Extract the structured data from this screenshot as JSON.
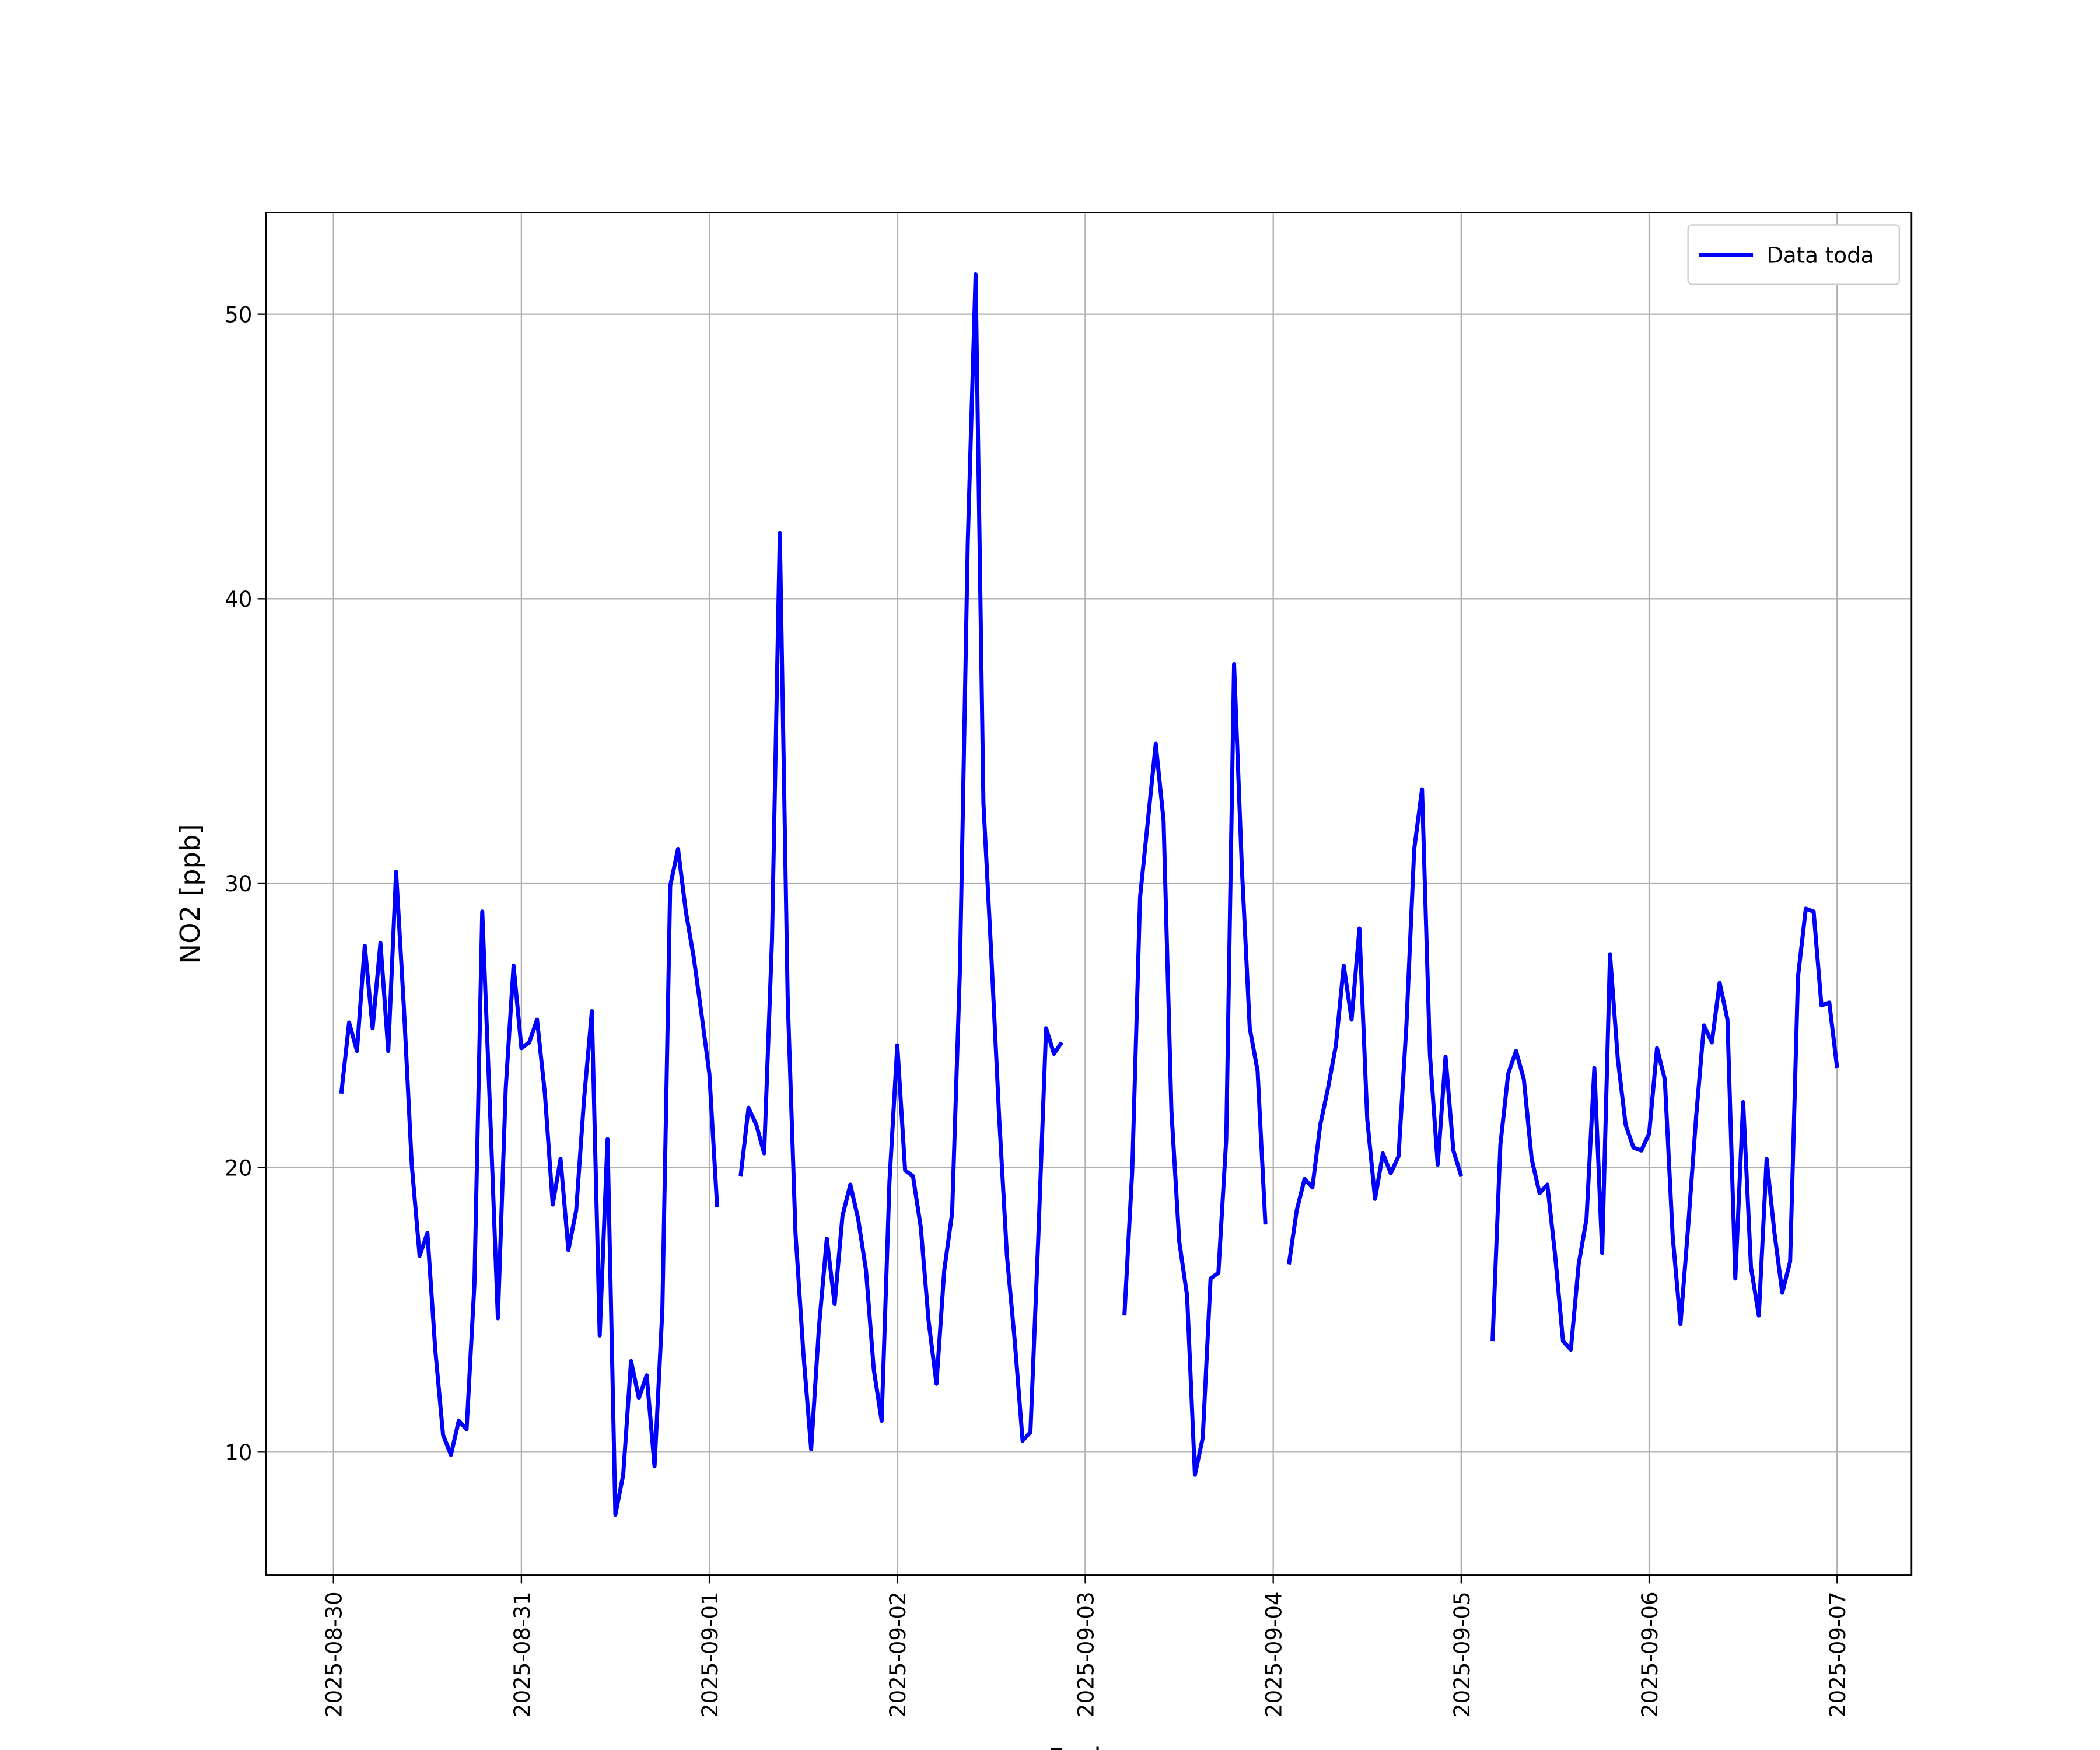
{
  "chart_data": {
    "type": "line",
    "xlabel": "Fecha",
    "ylabel": "NO2 [ppb]",
    "xlim": [
      "2025-08-29 15:21",
      "2025-09-07 09:30"
    ],
    "xticks": [
      "2025-08-30",
      "2025-08-31",
      "2025-09-01",
      "2025-09-02",
      "2025-09-03",
      "2025-09-04",
      "2025-09-05",
      "2025-09-06",
      "2025-09-07"
    ],
    "ylim": [
      5.67,
      53.57
    ],
    "yticks": [
      10,
      20,
      30,
      40,
      50
    ],
    "grid": true,
    "legend": "upper right",
    "x": [
      "2025-08-30 01:00",
      "2025-08-30 02:00",
      "2025-08-30 03:00",
      "2025-08-30 04:00",
      "2025-08-30 05:00",
      "2025-08-30 06:00",
      "2025-08-30 07:00",
      "2025-08-30 08:00",
      "2025-08-30 09:00",
      "2025-08-30 10:00",
      "2025-08-30 11:00",
      "2025-08-30 12:00",
      "2025-08-30 13:00",
      "2025-08-30 14:00",
      "2025-08-30 15:00",
      "2025-08-30 16:00",
      "2025-08-30 17:00",
      "2025-08-30 18:00",
      "2025-08-30 19:00",
      "2025-08-30 20:00",
      "2025-08-30 21:00",
      "2025-08-30 22:00",
      "2025-08-30 23:00",
      "2025-08-31 00:00",
      "2025-08-31 01:00",
      "2025-08-31 02:00",
      "2025-08-31 03:00",
      "2025-08-31 04:00",
      "2025-08-31 05:00",
      "2025-08-31 06:00",
      "2025-08-31 07:00",
      "2025-08-31 08:00",
      "2025-08-31 09:00",
      "2025-08-31 10:00",
      "2025-08-31 11:00",
      "2025-08-31 12:00",
      "2025-08-31 13:00",
      "2025-08-31 14:00",
      "2025-08-31 15:00",
      "2025-08-31 16:00",
      "2025-08-31 17:00",
      "2025-08-31 18:00",
      "2025-08-31 19:00",
      "2025-08-31 20:00",
      "2025-08-31 21:00",
      "2025-08-31 22:00",
      "2025-08-31 23:00",
      "2025-09-01 00:00",
      "2025-09-01 01:00",
      "2025-09-01 02:00",
      "2025-09-01 04:00",
      "2025-09-01 05:00",
      "2025-09-01 06:00",
      "2025-09-01 07:00",
      "2025-09-01 08:00",
      "2025-09-01 09:00",
      "2025-09-01 10:00",
      "2025-09-01 11:00",
      "2025-09-01 12:00",
      "2025-09-01 13:00",
      "2025-09-01 14:00",
      "2025-09-01 15:00",
      "2025-09-01 16:00",
      "2025-09-01 17:00",
      "2025-09-01 18:00",
      "2025-09-01 19:00",
      "2025-09-01 20:00",
      "2025-09-01 21:00",
      "2025-09-01 22:00",
      "2025-09-01 23:00",
      "2025-09-02 00:00",
      "2025-09-02 01:00",
      "2025-09-02 02:00",
      "2025-09-02 03:00",
      "2025-09-02 04:00",
      "2025-09-02 05:00",
      "2025-09-02 06:00",
      "2025-09-02 07:00",
      "2025-09-02 08:00",
      "2025-09-02 09:00",
      "2025-09-02 10:00",
      "2025-09-02 11:00",
      "2025-09-02 12:00",
      "2025-09-02 13:00",
      "2025-09-02 14:00",
      "2025-09-02 15:00",
      "2025-09-02 16:00",
      "2025-09-02 17:00",
      "2025-09-02 18:00",
      "2025-09-02 19:00",
      "2025-09-02 20:00",
      "2025-09-02 21:00",
      "2025-09-03 01:00",
      "2025-09-03 05:00",
      "2025-09-03 06:00",
      "2025-09-03 07:00",
      "2025-09-03 08:00",
      "2025-09-03 09:00",
      "2025-09-03 10:00",
      "2025-09-03 11:00",
      "2025-09-03 12:00",
      "2025-09-03 13:00",
      "2025-09-03 14:00",
      "2025-09-03 15:00",
      "2025-09-03 16:00",
      "2025-09-03 17:00",
      "2025-09-03 18:00",
      "2025-09-03 19:00",
      "2025-09-03 20:00",
      "2025-09-03 21:00",
      "2025-09-03 22:00",
      "2025-09-03 23:00",
      "2025-09-04 00:00",
      "2025-09-04 02:00",
      "2025-09-04 03:00",
      "2025-09-04 04:00",
      "2025-09-04 05:00",
      "2025-09-04 06:00",
      "2025-09-04 07:00",
      "2025-09-04 08:00",
      "2025-09-04 09:00",
      "2025-09-04 10:00",
      "2025-09-04 11:00",
      "2025-09-04 12:00",
      "2025-09-04 13:00",
      "2025-09-04 14:00",
      "2025-09-04 15:00",
      "2025-09-04 16:00",
      "2025-09-04 17:00",
      "2025-09-04 18:00",
      "2025-09-04 19:00",
      "2025-09-04 20:00",
      "2025-09-04 21:00",
      "2025-09-04 22:00",
      "2025-09-04 23:00",
      "2025-09-05 00:00",
      "2025-09-05 02:00",
      "2025-09-05 04:00",
      "2025-09-05 05:00",
      "2025-09-05 06:00",
      "2025-09-05 07:00",
      "2025-09-05 08:00",
      "2025-09-05 09:00",
      "2025-09-05 10:00",
      "2025-09-05 11:00",
      "2025-09-05 12:00",
      "2025-09-05 13:00",
      "2025-09-05 14:00",
      "2025-09-05 15:00",
      "2025-09-05 16:00",
      "2025-09-05 17:00",
      "2025-09-05 18:00",
      "2025-09-05 19:00",
      "2025-09-05 20:00",
      "2025-09-05 21:00",
      "2025-09-05 22:00",
      "2025-09-05 23:00",
      "2025-09-06 00:00",
      "2025-09-06 01:00",
      "2025-09-06 02:00",
      "2025-09-06 03:00",
      "2025-09-06 04:00",
      "2025-09-06 05:00",
      "2025-09-06 06:00",
      "2025-09-06 07:00",
      "2025-09-06 08:00",
      "2025-09-06 09:00",
      "2025-09-06 10:00",
      "2025-09-06 11:00",
      "2025-09-06 12:00",
      "2025-09-06 13:00",
      "2025-09-06 14:00",
      "2025-09-06 15:00",
      "2025-09-06 16:00",
      "2025-09-06 17:00",
      "2025-09-06 18:00",
      "2025-09-06 19:00",
      "2025-09-06 20:00",
      "2025-09-06 21:00",
      "2025-09-06 22:00",
      "2025-09-06 23:00",
      "2025-09-07 00:00"
    ],
    "series": [
      {
        "name": "Data toda",
        "color": "#0000ff",
        "values": [
          22.6,
          25.1,
          24.1,
          27.8,
          24.9,
          27.9,
          24.1,
          30.4,
          25.6,
          20.1,
          16.9,
          17.7,
          13.6,
          10.6,
          9.9,
          11.1,
          10.8,
          15.9,
          29.0,
          22.0,
          14.7,
          22.8,
          27.1,
          24.2,
          24.4,
          25.2,
          22.6,
          18.7,
          20.3,
          17.1,
          18.5,
          22.4,
          25.5,
          14.1,
          21.0,
          7.8,
          9.2,
          13.2,
          11.9,
          12.7,
          9.5,
          15.0,
          29.9,
          31.2,
          29.0,
          27.4,
          25.4,
          23.3,
          18.6,
          null,
          19.7,
          22.1,
          21.5,
          20.5,
          28.0,
          42.3,
          26.0,
          17.7,
          13.5,
          10.1,
          14.4,
          17.5,
          15.2,
          18.3,
          19.4,
          18.2,
          16.4,
          12.9,
          11.1,
          19.5,
          24.3,
          19.9,
          19.7,
          17.9,
          14.6,
          12.4,
          16.4,
          18.4,
          27.0,
          42.0,
          51.4,
          32.8,
          27.5,
          21.8,
          16.9,
          13.9,
          10.4,
          10.7,
          17.5,
          24.9,
          24.0,
          24.4,
          null,
          14.8,
          19.9,
          29.5,
          32.2,
          34.9,
          32.2,
          22.0,
          17.4,
          15.5,
          9.2,
          10.5,
          16.1,
          16.3,
          21.0,
          37.7,
          30.5,
          24.9,
          23.4,
          18.0,
          null,
          16.6,
          18.5,
          19.6,
          19.3,
          21.5,
          22.8,
          24.3,
          27.1,
          25.2,
          28.4,
          21.7,
          18.9,
          20.5,
          19.8,
          20.4,
          25.0,
          31.2,
          33.3,
          24.0,
          20.1,
          23.9,
          20.6,
          19.7,
          null,
          13.9,
          20.8,
          23.3,
          24.1,
          23.1,
          20.3,
          19.1,
          19.4,
          16.9,
          13.9,
          13.6,
          16.6,
          18.2,
          23.5,
          17.0,
          27.5,
          23.8,
          21.5,
          20.7,
          20.6,
          21.2,
          24.2,
          23.1,
          17.6,
          14.5,
          18.0,
          21.8,
          25.0,
          24.4,
          26.5,
          25.2,
          16.1,
          22.3,
          16.5,
          14.8,
          20.3,
          17.7,
          15.6,
          16.7,
          26.7,
          29.1,
          29.0,
          25.7,
          25.8,
          23.5
        ]
      }
    ]
  }
}
